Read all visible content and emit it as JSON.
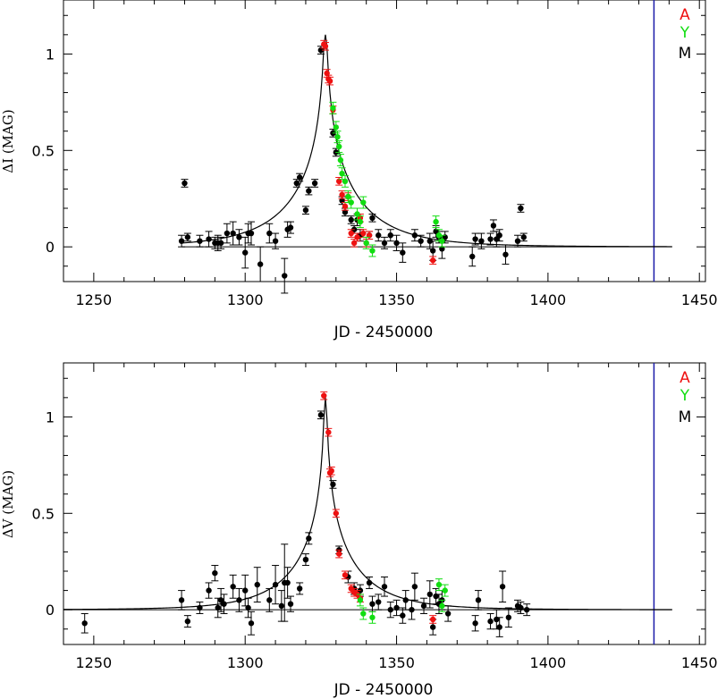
{
  "colors": {
    "A": "#ee1111",
    "Y": "#11dd11",
    "M": "#000000",
    "today_line": "#1a1aa8",
    "axis": "#000000"
  },
  "chart_data": [
    {
      "type": "scatter",
      "panel": "top",
      "xlabel": "JD - 2450000",
      "ylabel": "ΔI (MAG)",
      "xlim": [
        1240,
        1452
      ],
      "ylim": [
        -0.18,
        1.28
      ],
      "xticks": [
        1250,
        1300,
        1350,
        1400,
        1450
      ],
      "yticks": [
        0,
        0.5,
        1
      ],
      "ytick_labels": [
        "0",
        "0.5",
        "1"
      ],
      "vline": 1435,
      "legend": [
        "A",
        "Y",
        "M"
      ],
      "legend_position": "top-right",
      "model": {
        "t0": 1326.5,
        "tE": 25,
        "u0": 0.018,
        "x_range": [
          1279,
          1441
        ]
      },
      "series": [
        {
          "name": "M",
          "color": "M",
          "points": [
            [
              1279,
              0.03,
              0.03
            ],
            [
              1280,
              0.33,
              0.02
            ],
            [
              1281,
              0.05,
              0.02
            ],
            [
              1285,
              0.03,
              0.03
            ],
            [
              1288,
              0.04,
              0.04
            ],
            [
              1290,
              0.02,
              0.03
            ],
            [
              1291,
              0.02,
              0.04
            ],
            [
              1292,
              0.02,
              0.03
            ],
            [
              1294,
              0.07,
              0.05
            ],
            [
              1296,
              0.07,
              0.06
            ],
            [
              1298,
              0.05,
              0.04
            ],
            [
              1300,
              -0.03,
              0.08
            ],
            [
              1301,
              0.07,
              0.05
            ],
            [
              1302,
              0.07,
              0.06
            ],
            [
              1305,
              -0.09,
              0.09
            ],
            [
              1308,
              0.07,
              0.05
            ],
            [
              1310,
              0.03,
              0.04
            ],
            [
              1313,
              -0.15,
              0.09
            ],
            [
              1314,
              0.09,
              0.04
            ],
            [
              1315,
              0.1,
              0.03
            ],
            [
              1317,
              0.33,
              0.02
            ],
            [
              1318,
              0.36,
              0.02
            ],
            [
              1320,
              0.19,
              0.02
            ],
            [
              1321,
              0.29,
              0.02
            ],
            [
              1323,
              0.33,
              0.02
            ],
            [
              1325,
              1.02,
              0.02
            ],
            [
              1329,
              0.59,
              0.02
            ],
            [
              1330,
              0.49,
              0.02
            ],
            [
              1332,
              0.24,
              0.02
            ],
            [
              1333,
              0.18,
              0.02
            ],
            [
              1335,
              0.14,
              0.02
            ],
            [
              1336,
              0.09,
              0.02
            ],
            [
              1337,
              0.14,
              0.03
            ],
            [
              1338,
              0.06,
              0.03
            ],
            [
              1341,
              0.06,
              0.02
            ],
            [
              1342,
              0.15,
              0.02
            ],
            [
              1344,
              0.06,
              0.03
            ],
            [
              1346,
              0.02,
              0.03
            ],
            [
              1348,
              0.06,
              0.03
            ],
            [
              1350,
              0.02,
              0.04
            ],
            [
              1352,
              -0.03,
              0.05
            ],
            [
              1356,
              0.06,
              0.03
            ],
            [
              1358,
              0.03,
              0.03
            ],
            [
              1361,
              0.03,
              0.04
            ],
            [
              1362,
              -0.02,
              0.05
            ],
            [
              1363,
              0.08,
              0.03
            ],
            [
              1364,
              0.05,
              0.03
            ],
            [
              1365,
              -0.01,
              0.05
            ],
            [
              1366,
              0.05,
              0.03
            ],
            [
              1375,
              -0.05,
              0.05
            ],
            [
              1376,
              0.04,
              0.03
            ],
            [
              1378,
              0.03,
              0.04
            ],
            [
              1381,
              0.04,
              0.03
            ],
            [
              1382,
              0.11,
              0.03
            ],
            [
              1383,
              0.04,
              0.04
            ],
            [
              1384,
              0.06,
              0.03
            ],
            [
              1386,
              -0.04,
              0.05
            ],
            [
              1390,
              0.03,
              0.03
            ],
            [
              1391,
              0.2,
              0.02
            ],
            [
              1392,
              0.05,
              0.02
            ]
          ]
        },
        {
          "name": "A",
          "color": "A",
          "points": [
            [
              1326,
              1.05,
              0.02
            ],
            [
              1326.5,
              1.04,
              0.02
            ],
            [
              1327,
              0.9,
              0.02
            ],
            [
              1327.5,
              0.87,
              0.02
            ],
            [
              1328,
              0.86,
              0.02
            ],
            [
              1329,
              0.71,
              0.02
            ],
            [
              1331,
              0.34,
              0.02
            ],
            [
              1332,
              0.27,
              0.02
            ],
            [
              1333,
              0.21,
              0.02
            ],
            [
              1334,
              0.26,
              0.02
            ],
            [
              1335,
              0.07,
              0.02
            ],
            [
              1336,
              0.02,
              0.02
            ],
            [
              1337,
              0.05,
              0.02
            ],
            [
              1338,
              0.15,
              0.02
            ],
            [
              1339,
              0.07,
              0.02
            ],
            [
              1340,
              0.02,
              0.02
            ],
            [
              1341,
              0.06,
              0.02
            ],
            [
              1362,
              -0.07,
              0.02
            ]
          ]
        },
        {
          "name": "Y",
          "color": "Y",
          "points": [
            [
              1329,
              0.72,
              0.03
            ],
            [
              1330,
              0.62,
              0.03
            ],
            [
              1330.5,
              0.57,
              0.03
            ],
            [
              1331,
              0.52,
              0.03
            ],
            [
              1331.5,
              0.45,
              0.03
            ],
            [
              1332,
              0.38,
              0.03
            ],
            [
              1333,
              0.34,
              0.03
            ],
            [
              1334,
              0.26,
              0.03
            ],
            [
              1335,
              0.23,
              0.03
            ],
            [
              1337,
              0.17,
              0.03
            ],
            [
              1338,
              0.13,
              0.03
            ],
            [
              1339,
              0.23,
              0.03
            ],
            [
              1340,
              0.02,
              0.03
            ],
            [
              1342,
              -0.02,
              0.03
            ],
            [
              1363,
              0.13,
              0.03
            ],
            [
              1364,
              0.06,
              0.03
            ],
            [
              1365,
              0.03,
              0.03
            ]
          ]
        }
      ]
    },
    {
      "type": "scatter",
      "panel": "bottom",
      "xlabel": "JD - 2450000",
      "ylabel": "ΔV (MAG)",
      "xlim": [
        1240,
        1452
      ],
      "ylim": [
        -0.18,
        1.28
      ],
      "xticks": [
        1250,
        1300,
        1350,
        1400,
        1450
      ],
      "yticks": [
        0,
        0.5,
        1
      ],
      "ytick_labels": [
        "0",
        "0.5",
        "1"
      ],
      "vline": 1435,
      "legend": [
        "A",
        "Y",
        "M"
      ],
      "legend_position": "top-right",
      "model": {
        "t0": 1326.5,
        "tE": 22,
        "u0": 0.012,
        "x_range": [
          1240,
          1441
        ]
      },
      "series": [
        {
          "name": "M",
          "color": "M",
          "points": [
            [
              1247,
              -0.07,
              0.05
            ],
            [
              1279,
              0.05,
              0.05
            ],
            [
              1281,
              -0.06,
              0.03
            ],
            [
              1285,
              0.01,
              0.03
            ],
            [
              1288,
              0.1,
              0.04
            ],
            [
              1290,
              0.19,
              0.04
            ],
            [
              1291,
              0.01,
              0.05
            ],
            [
              1292,
              0.05,
              0.06
            ],
            [
              1293,
              0.03,
              0.05
            ],
            [
              1296,
              0.12,
              0.06
            ],
            [
              1298,
              0.05,
              0.06
            ],
            [
              1300,
              0.1,
              0.08
            ],
            [
              1301,
              0.01,
              0.05
            ],
            [
              1302,
              -0.07,
              0.06
            ],
            [
              1304,
              0.13,
              0.09
            ],
            [
              1308,
              0.05,
              0.06
            ],
            [
              1310,
              0.13,
              0.1
            ],
            [
              1312,
              0.02,
              0.08
            ],
            [
              1313,
              0.14,
              0.2
            ],
            [
              1314,
              0.14,
              0.08
            ],
            [
              1315,
              0.03,
              0.04
            ],
            [
              1318,
              0.11,
              0.03
            ],
            [
              1320,
              0.26,
              0.03
            ],
            [
              1321,
              0.37,
              0.03
            ],
            [
              1325,
              1.01,
              0.02
            ],
            [
              1329,
              0.65,
              0.02
            ],
            [
              1331,
              0.31,
              0.02
            ],
            [
              1334,
              0.17,
              0.03
            ],
            [
              1336,
              0.11,
              0.03
            ],
            [
              1338,
              0.1,
              0.03
            ],
            [
              1341,
              0.14,
              0.03
            ],
            [
              1342,
              0.03,
              0.04
            ],
            [
              1344,
              0.04,
              0.04
            ],
            [
              1346,
              0.12,
              0.05
            ],
            [
              1348,
              0.0,
              0.04
            ],
            [
              1350,
              0.01,
              0.04
            ],
            [
              1352,
              -0.03,
              0.04
            ],
            [
              1353,
              0.05,
              0.05
            ],
            [
              1355,
              0.0,
              0.05
            ],
            [
              1356,
              0.12,
              0.07
            ],
            [
              1359,
              0.02,
              0.04
            ],
            [
              1361,
              0.08,
              0.07
            ],
            [
              1362,
              -0.09,
              0.04
            ],
            [
              1363,
              0.07,
              0.04
            ],
            [
              1364,
              0.03,
              0.05
            ],
            [
              1365,
              0.05,
              0.05
            ],
            [
              1367,
              -0.02,
              0.04
            ],
            [
              1376,
              -0.07,
              0.04
            ],
            [
              1377,
              0.05,
              0.05
            ],
            [
              1381,
              -0.06,
              0.04
            ],
            [
              1383,
              -0.05,
              0.05
            ],
            [
              1384,
              -0.09,
              0.05
            ],
            [
              1385,
              0.12,
              0.08
            ],
            [
              1387,
              -0.04,
              0.05
            ],
            [
              1390,
              0.02,
              0.03
            ],
            [
              1391,
              0.01,
              0.03
            ],
            [
              1393,
              0.0,
              0.03
            ]
          ]
        },
        {
          "name": "A",
          "color": "A",
          "points": [
            [
              1326,
              1.11,
              0.02
            ],
            [
              1327.5,
              0.92,
              0.02
            ],
            [
              1328,
              0.71,
              0.02
            ],
            [
              1328.5,
              0.72,
              0.02
            ],
            [
              1330,
              0.5,
              0.02
            ],
            [
              1331,
              0.29,
              0.02
            ],
            [
              1333,
              0.18,
              0.02
            ],
            [
              1335,
              0.11,
              0.02
            ],
            [
              1336,
              0.09,
              0.02
            ],
            [
              1337,
              0.08,
              0.02
            ],
            [
              1338,
              0.06,
              0.02
            ],
            [
              1362,
              -0.05,
              0.02
            ]
          ]
        },
        {
          "name": "Y",
          "color": "Y",
          "points": [
            [
              1338,
              0.05,
              0.03
            ],
            [
              1339,
              -0.02,
              0.03
            ],
            [
              1342,
              -0.04,
              0.03
            ],
            [
              1364,
              0.13,
              0.03
            ],
            [
              1365,
              0.02,
              0.03
            ],
            [
              1366,
              0.1,
              0.03
            ]
          ]
        }
      ]
    }
  ]
}
